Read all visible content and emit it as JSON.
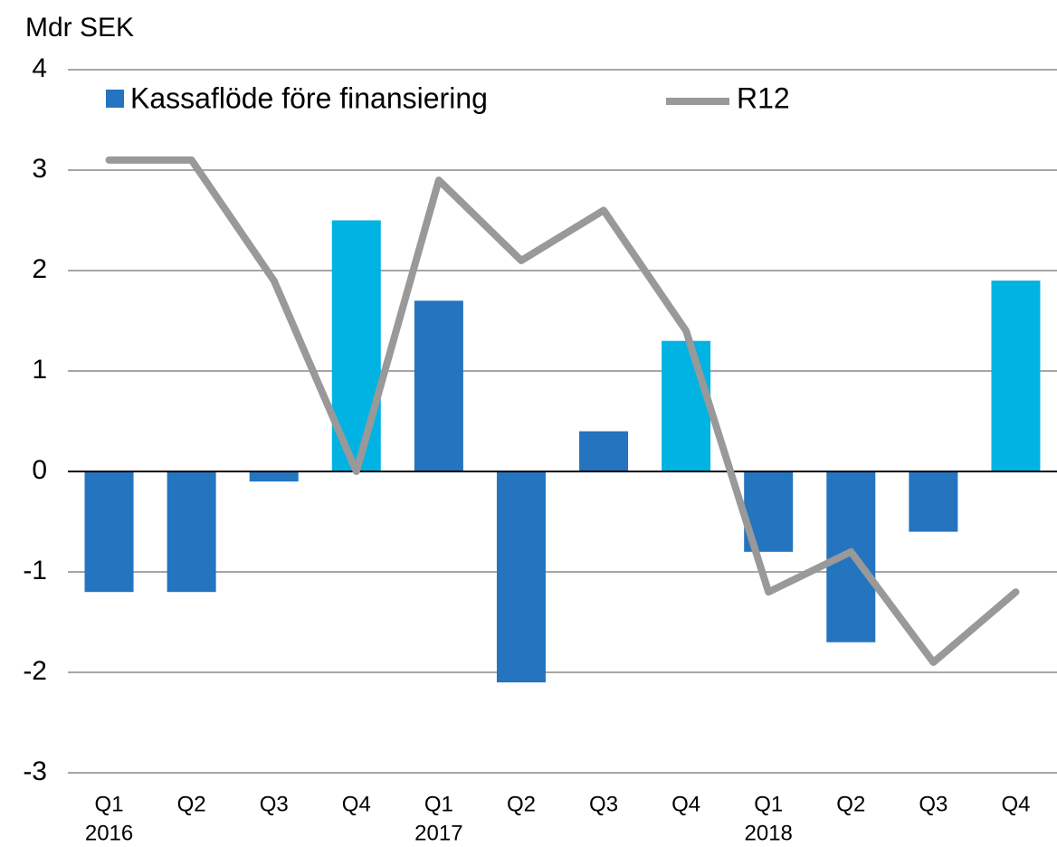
{
  "chart_data": {
    "type": "bar_line",
    "y_label": "Mdr SEK",
    "categories": [
      "Q1",
      "Q2",
      "Q3",
      "Q4",
      "Q1",
      "Q2",
      "Q3",
      "Q4",
      "Q1",
      "Q2",
      "Q3",
      "Q4"
    ],
    "years": [
      "2016",
      null,
      null,
      null,
      "2017",
      null,
      null,
      null,
      "2018",
      null,
      null,
      null
    ],
    "series": [
      {
        "name": "Kassaflöde före finansiering",
        "type": "bar",
        "color": "#2474bf",
        "colors": [
          "#2474bf",
          "#2474bf",
          "#2474bf",
          "#00b3e3",
          "#2474bf",
          "#2474bf",
          "#2474bf",
          "#00b3e3",
          "#2474bf",
          "#2474bf",
          "#2474bf",
          "#00b3e3"
        ],
        "values": [
          -1.2,
          -1.2,
          -0.1,
          2.5,
          1.7,
          -2.1,
          0.4,
          1.3,
          -0.8,
          -1.7,
          -0.6,
          1.9
        ]
      },
      {
        "name": "R12",
        "type": "line",
        "color": "#999999",
        "values": [
          3.1,
          3.1,
          1.9,
          0.0,
          2.9,
          2.1,
          2.6,
          1.4,
          -1.2,
          -0.8,
          -1.9,
          -1.2
        ]
      }
    ],
    "ylim": [
      -3,
      4
    ],
    "yticks": [
      -3,
      -2,
      -1,
      0,
      1,
      2,
      3,
      4
    ],
    "grid": true
  }
}
